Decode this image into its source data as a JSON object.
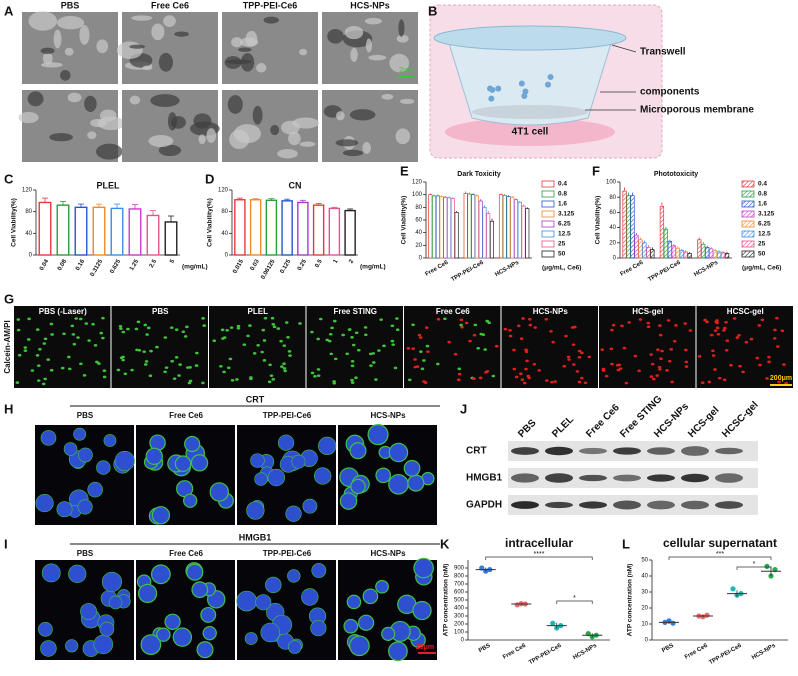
{
  "panel_letters": [
    "A",
    "B",
    "C",
    "D",
    "E",
    "F",
    "G",
    "H",
    "I",
    "J",
    "K",
    "L"
  ],
  "panel_a": {
    "columns": [
      "PBS",
      "Free Ce6",
      "TPP-PEI-Ce6",
      "HCS-NPs"
    ],
    "scale_bar": "2μm"
  },
  "panel_b": {
    "labels": [
      "Transwell",
      "components",
      "Microporous membrane",
      "4T1 cell"
    ]
  },
  "panel_g": {
    "side_label": "Calcein-AM/PI",
    "columns": [
      "PBS (-Laser)",
      "PBS",
      "PLEL",
      "Free STING",
      "Free Ce6",
      "HCS-NPs",
      "HCS-gel",
      "HCSC-gel"
    ],
    "scale_bar": "200μm"
  },
  "panel_h": {
    "title": "CRT",
    "columns": [
      "PBS",
      "Free Ce6",
      "TPP-PEI-Ce6",
      "HCS-NPs"
    ]
  },
  "panel_i": {
    "title": "HMGB1",
    "columns": [
      "PBS",
      "Free Ce6",
      "TPP-PEI-Ce6",
      "HCS-NPs"
    ],
    "scale_bar": "20μm"
  },
  "panel_j": {
    "lanes": [
      "PBS",
      "PLEL",
      "Free Ce6",
      "Free STING",
      "HCS-NPs",
      "HCS-gel",
      "HCSC-gel"
    ],
    "rows": [
      "CRT",
      "HMGB1",
      "GAPDH"
    ]
  },
  "chart_data": [
    {
      "type": "bar",
      "title": "PLEL",
      "y_label": "Cell Viability(%)",
      "x_unit": "(mg/mL)",
      "categories": [
        "0.04",
        "0.08",
        "0.16",
        "0.3125",
        "0.625",
        "1.25",
        "2.5",
        "5"
      ],
      "values": [
        97,
        92,
        88,
        88,
        86,
        85,
        73,
        61
      ],
      "errors": [
        8,
        7,
        6,
        6,
        8,
        8,
        9,
        11
      ],
      "colors": [
        "#e8393a",
        "#2a9d3a",
        "#2557c9",
        "#f18a22",
        "#3a8ee6",
        "#c83cc8",
        "#e8528a",
        "#222222"
      ],
      "ylim": [
        0,
        120
      ],
      "yticks": [
        0,
        40,
        80,
        120
      ]
    },
    {
      "type": "bar",
      "title": "CN",
      "y_label": "Cell Viability(%)",
      "x_unit": "(mg/mL)",
      "categories": [
        "0.015",
        "0.03",
        "0.06125",
        "0.125",
        "0.25",
        "0.5",
        "1",
        "2"
      ],
      "values": [
        102,
        102,
        101,
        100,
        97,
        92,
        86,
        82
      ],
      "errors": [
        3,
        2,
        3,
        3,
        4,
        3,
        2,
        3
      ],
      "colors": [
        "#e8393a",
        "#f18a22",
        "#2a9d3a",
        "#2557c9",
        "#a23cc8",
        "#e8393a",
        "#e8528a",
        "#222222"
      ],
      "ylim": [
        0,
        120
      ],
      "yticks": [
        0,
        40,
        80,
        120
      ]
    },
    {
      "type": "grouped_bar",
      "title": "Dark Toxicity",
      "y_label": "Cell Viability(%)",
      "x_unit": "(μg/mL, Ce6)",
      "hatched": false,
      "categories": [
        "Free Ce6",
        "TPP-PEI-Ce6",
        "HCS-NPs"
      ],
      "series": [
        {
          "name": "0.4",
          "color": "#e8393a",
          "values": [
            100,
            102,
            100
          ],
          "errors": [
            2,
            3,
            2
          ]
        },
        {
          "name": "0.8",
          "color": "#2a9d3a",
          "values": [
            98,
            101,
            99
          ],
          "errors": [
            2,
            2,
            2
          ]
        },
        {
          "name": "1.6",
          "color": "#2557c9",
          "values": [
            98,
            100,
            97
          ],
          "errors": [
            2,
            2,
            2
          ]
        },
        {
          "name": "3.125",
          "color": "#f18a22",
          "values": [
            97,
            98,
            96
          ],
          "errors": [
            2,
            3,
            2
          ]
        },
        {
          "name": "6.25",
          "color": "#a23cc8",
          "values": [
            96,
            90,
            92
          ],
          "errors": [
            2,
            3,
            2
          ]
        },
        {
          "name": "12.5",
          "color": "#3a8ee6",
          "values": [
            95,
            80,
            88
          ],
          "errors": [
            2,
            3,
            2
          ]
        },
        {
          "name": "25",
          "color": "#e8528a",
          "values": [
            94,
            70,
            82
          ],
          "errors": [
            2,
            4,
            2
          ]
        },
        {
          "name": "50",
          "color": "#222222",
          "values": [
            72,
            58,
            78
          ],
          "errors": [
            2,
            4,
            2
          ]
        }
      ],
      "ylim": [
        0,
        120
      ],
      "yticks": [
        0,
        20,
        40,
        60,
        80,
        100,
        120
      ]
    },
    {
      "type": "grouped_bar",
      "title": "Phototoxicity",
      "y_label": "Cell Viability(%)",
      "x_unit": "(μg/mL, Ce6)",
      "hatched": true,
      "categories": [
        "Free Ce6",
        "TPP-PEI-Ce6",
        "HCS-NPs"
      ],
      "series": [
        {
          "name": "0.4",
          "color": "#e8393a",
          "values": [
            88,
            68,
            24
          ],
          "errors": [
            5,
            5,
            3
          ]
        },
        {
          "name": "0.8",
          "color": "#2a9d3a",
          "values": [
            82,
            38,
            18
          ],
          "errors": [
            4,
            3,
            3
          ]
        },
        {
          "name": "1.6",
          "color": "#2557c9",
          "values": [
            82,
            22,
            14
          ],
          "errors": [
            4,
            2,
            2
          ]
        },
        {
          "name": "3.125",
          "color": "#c83cc8",
          "values": [
            30,
            16,
            12
          ],
          "errors": [
            3,
            2,
            2
          ]
        },
        {
          "name": "6.25",
          "color": "#f18a22",
          "values": [
            24,
            13,
            10
          ],
          "errors": [
            3,
            2,
            2
          ]
        },
        {
          "name": "12.5",
          "color": "#3a8ee6",
          "values": [
            20,
            10,
            8
          ],
          "errors": [
            3,
            2,
            2
          ]
        },
        {
          "name": "25",
          "color": "#e8528a",
          "values": [
            14,
            8,
            7
          ],
          "errors": [
            3,
            2,
            2
          ]
        },
        {
          "name": "50",
          "color": "#222222",
          "values": [
            11,
            6,
            6
          ],
          "errors": [
            3,
            2,
            2
          ]
        }
      ],
      "ylim": [
        0,
        100
      ],
      "yticks": [
        0,
        20,
        40,
        60,
        80,
        100
      ]
    },
    {
      "type": "dot",
      "title": "intracellular",
      "y_label": "ATP concentration (nM)",
      "categories": [
        "PBS",
        "Free Ce6",
        "TPP-PEI-Ce6",
        "HCS-NPs"
      ],
      "values": [
        880,
        450,
        180,
        60
      ],
      "errors": [
        25,
        10,
        35,
        25
      ],
      "points": [
        [
          900,
          860,
          880
        ],
        [
          440,
          455,
          450
        ],
        [
          210,
          150,
          180
        ],
        [
          80,
          40,
          60
        ]
      ],
      "colors": [
        "#3a7bd5",
        "#e86a6a",
        "#1fb5b5",
        "#2aa84a"
      ],
      "annotations": [
        {
          "text": "****",
          "between": [
            "PBS",
            "HCS-NPs"
          ]
        },
        {
          "text": "*",
          "between": [
            "TPP-PEI-Ce6",
            "HCS-NPs"
          ]
        }
      ],
      "ylim": [
        0,
        1000
      ],
      "yticks": [
        0,
        100,
        200,
        300,
        400,
        500,
        600,
        700,
        800,
        900
      ]
    },
    {
      "type": "dot",
      "title": "cellular supernatant",
      "y_label": "ATP concentration (nM)",
      "categories": [
        "PBS",
        "Free Ce6",
        "TPP-PEI-Ce6",
        "HCS-NPs"
      ],
      "values": [
        11,
        15,
        29,
        43
      ],
      "errors": [
        1,
        0.6,
        2,
        3
      ],
      "points": [
        [
          11,
          12,
          10.5
        ],
        [
          15,
          14.5,
          15.5
        ],
        [
          32,
          28,
          29
        ],
        [
          46,
          40,
          44
        ]
      ],
      "colors": [
        "#3a7bd5",
        "#e86a6a",
        "#1fb5b5",
        "#2aa84a"
      ],
      "annotations": [
        {
          "text": "***",
          "between": [
            "PBS",
            "HCS-NPs"
          ]
        },
        {
          "text": "*",
          "between": [
            "TPP-PEI-Ce6",
            "HCS-NPs"
          ]
        }
      ],
      "ylim": [
        0,
        50
      ],
      "yticks": [
        0,
        10,
        20,
        30,
        40,
        50
      ]
    }
  ]
}
